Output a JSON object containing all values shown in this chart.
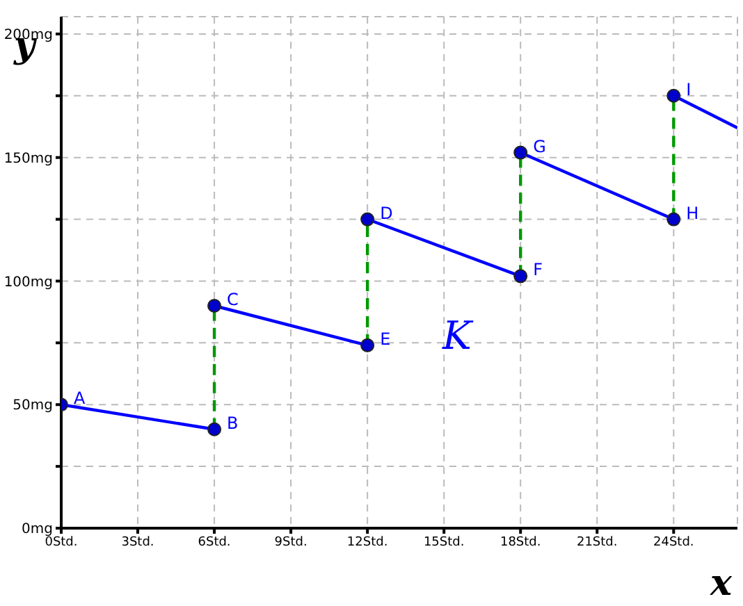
{
  "chart_data": {
    "type": "line",
    "xlabel": "x",
    "ylabel": "y",
    "xlim": [
      0,
      26.5
    ],
    "ylim": [
      0,
      207
    ],
    "xticks": [
      {
        "value": 0,
        "label": "0Std."
      },
      {
        "value": 3,
        "label": "3Std."
      },
      {
        "value": 6,
        "label": "6Std."
      },
      {
        "value": 9,
        "label": "9Std."
      },
      {
        "value": 12,
        "label": "12Std."
      },
      {
        "value": 15,
        "label": "15Std."
      },
      {
        "value": 18,
        "label": "18Std."
      },
      {
        "value": 21,
        "label": "21Std."
      },
      {
        "value": 24,
        "label": "24Std."
      }
    ],
    "yticks": [
      {
        "value": 0,
        "label": "0mg"
      },
      {
        "value": 25,
        "label": null
      },
      {
        "value": 50,
        "label": "50mg"
      },
      {
        "value": 75,
        "label": null
      },
      {
        "value": 100,
        "label": "100mg"
      },
      {
        "value": 125,
        "label": null
      },
      {
        "value": 150,
        "label": "150mg"
      },
      {
        "value": 175,
        "label": null
      },
      {
        "value": 200,
        "label": "200mg"
      }
    ],
    "grid": true,
    "series": [
      {
        "color": "#0000ff",
        "x": [
          0,
          6
        ],
        "values": [
          50,
          40
        ],
        "marker": "none"
      },
      {
        "color": "#0000ff",
        "x": [
          6,
          12
        ],
        "values": [
          90,
          74
        ],
        "marker": "none"
      },
      {
        "color": "#0000ff",
        "x": [
          12,
          18
        ],
        "values": [
          125,
          102
        ],
        "marker": "none"
      },
      {
        "color": "#0000ff",
        "x": [
          18,
          24
        ],
        "values": [
          152,
          125
        ],
        "marker": "none"
      },
      {
        "color": "#0000ff",
        "x": [
          24,
          26.5
        ],
        "values": [
          175,
          162
        ],
        "marker": "none"
      },
      {
        "type": "line",
        "color": "#009900",
        "x": [
          6,
          6
        ],
        "values": [
          40,
          90
        ],
        "marker": "none",
        "line_style": "dashed"
      },
      {
        "type": "line",
        "color": "#009900",
        "x": [
          12,
          12
        ],
        "values": [
          74,
          125
        ],
        "marker": "none",
        "line_style": "dashed"
      },
      {
        "type": "line",
        "color": "#009900",
        "x": [
          18,
          18
        ],
        "values": [
          102,
          152
        ],
        "marker": "none",
        "line_style": "dashed"
      },
      {
        "type": "line",
        "color": "#009900",
        "x": [
          24,
          24
        ],
        "values": [
          125,
          175
        ],
        "marker": "none",
        "line_style": "dashed"
      },
      {
        "type": "scatter",
        "color": "#0000cc",
        "x": [
          0,
          6,
          6,
          12,
          12,
          18,
          18,
          24,
          24
        ],
        "values": [
          50,
          40,
          90,
          74,
          125,
          102,
          152,
          125,
          175
        ],
        "marker": "circle"
      }
    ],
    "annotations": [
      {
        "text": "A",
        "x": 0,
        "y": 50
      },
      {
        "text": "B",
        "x": 6,
        "y": 40
      },
      {
        "text": "C",
        "x": 6,
        "y": 90
      },
      {
        "text": "E",
        "x": 12,
        "y": 74
      },
      {
        "text": "D",
        "x": 12,
        "y": 125
      },
      {
        "text": "F",
        "x": 18,
        "y": 102
      },
      {
        "text": "G",
        "x": 18,
        "y": 152
      },
      {
        "text": "H",
        "x": 24,
        "y": 125
      },
      {
        "text": "I",
        "x": 24,
        "y": 175
      },
      "K"
    ]
  }
}
